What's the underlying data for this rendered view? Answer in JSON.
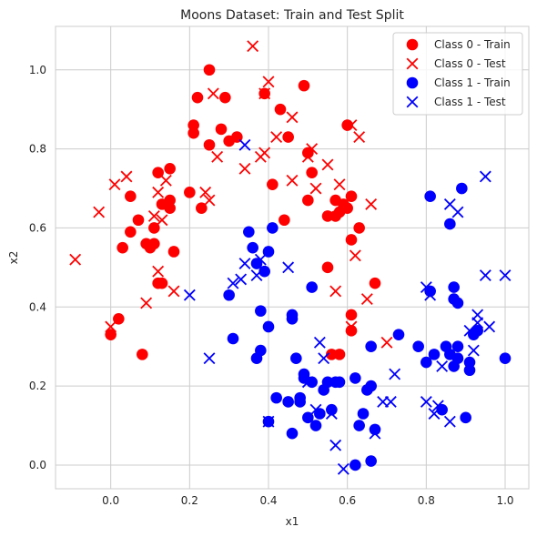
{
  "chart_data": {
    "type": "scatter",
    "title": "Moons Dataset: Train and Test Split",
    "xlabel": "x1",
    "ylabel": "x2",
    "xlim": [
      -0.14,
      1.06
    ],
    "ylim": [
      -0.06,
      1.11
    ],
    "xticks": [
      "0.0",
      "0.2",
      "0.4",
      "0.6",
      "0.8",
      "1.0"
    ],
    "yticks": [
      "0.0",
      "0.2",
      "0.4",
      "0.6",
      "0.8",
      "1.0"
    ],
    "grid": true,
    "legend_position": "top-right",
    "series": [
      {
        "name": "Class 0 - Train",
        "color": "#ff0000",
        "marker": "circle",
        "points": [
          [
            0.0,
            0.33
          ],
          [
            0.02,
            0.37
          ],
          [
            0.03,
            0.55
          ],
          [
            0.05,
            0.68
          ],
          [
            0.05,
            0.59
          ],
          [
            0.07,
            0.62
          ],
          [
            0.08,
            0.28
          ],
          [
            0.09,
            0.56
          ],
          [
            0.1,
            0.55
          ],
          [
            0.11,
            0.56
          ],
          [
            0.11,
            0.6
          ],
          [
            0.12,
            0.74
          ],
          [
            0.12,
            0.46
          ],
          [
            0.13,
            0.46
          ],
          [
            0.13,
            0.66
          ],
          [
            0.15,
            0.75
          ],
          [
            0.15,
            0.67
          ],
          [
            0.15,
            0.65
          ],
          [
            0.16,
            0.54
          ],
          [
            0.2,
            0.69
          ],
          [
            0.21,
            0.86
          ],
          [
            0.21,
            0.84
          ],
          [
            0.22,
            0.93
          ],
          [
            0.23,
            0.65
          ],
          [
            0.25,
            1.0
          ],
          [
            0.25,
            0.81
          ],
          [
            0.28,
            0.85
          ],
          [
            0.29,
            0.93
          ],
          [
            0.3,
            0.82
          ],
          [
            0.32,
            0.83
          ],
          [
            0.39,
            0.94
          ],
          [
            0.41,
            0.71
          ],
          [
            0.43,
            0.9
          ],
          [
            0.44,
            0.62
          ],
          [
            0.45,
            0.83
          ],
          [
            0.49,
            0.96
          ],
          [
            0.5,
            0.67
          ],
          [
            0.5,
            0.79
          ],
          [
            0.51,
            0.74
          ],
          [
            0.55,
            0.63
          ],
          [
            0.55,
            0.5
          ],
          [
            0.56,
            0.28
          ],
          [
            0.57,
            0.67
          ],
          [
            0.57,
            0.63
          ],
          [
            0.58,
            0.28
          ],
          [
            0.58,
            0.64
          ],
          [
            0.59,
            0.66
          ],
          [
            0.6,
            0.65
          ],
          [
            0.6,
            0.86
          ],
          [
            0.61,
            0.68
          ],
          [
            0.61,
            0.57
          ],
          [
            0.61,
            0.38
          ],
          [
            0.61,
            0.34
          ],
          [
            0.63,
            0.6
          ],
          [
            0.67,
            0.46
          ]
        ]
      },
      {
        "name": "Class 0 - Test",
        "color": "#ff0000",
        "marker": "x",
        "points": [
          [
            -0.09,
            0.52
          ],
          [
            -0.03,
            0.64
          ],
          [
            0.0,
            0.35
          ],
          [
            0.01,
            0.71
          ],
          [
            0.04,
            0.73
          ],
          [
            0.09,
            0.41
          ],
          [
            0.11,
            0.63
          ],
          [
            0.12,
            0.49
          ],
          [
            0.12,
            0.69
          ],
          [
            0.13,
            0.62
          ],
          [
            0.14,
            0.72
          ],
          [
            0.16,
            0.44
          ],
          [
            0.24,
            0.69
          ],
          [
            0.25,
            0.67
          ],
          [
            0.26,
            0.94
          ],
          [
            0.27,
            0.78
          ],
          [
            0.36,
            1.06
          ],
          [
            0.34,
            0.75
          ],
          [
            0.38,
            0.78
          ],
          [
            0.39,
            0.79
          ],
          [
            0.39,
            0.94
          ],
          [
            0.4,
            0.97
          ],
          [
            0.42,
            0.83
          ],
          [
            0.46,
            0.88
          ],
          [
            0.46,
            0.72
          ],
          [
            0.5,
            0.78
          ],
          [
            0.51,
            0.8
          ],
          [
            0.52,
            0.7
          ],
          [
            0.55,
            0.76
          ],
          [
            0.57,
            0.44
          ],
          [
            0.58,
            0.71
          ],
          [
            0.61,
            0.86
          ],
          [
            0.61,
            0.35
          ],
          [
            0.62,
            0.53
          ],
          [
            0.63,
            0.83
          ],
          [
            0.65,
            0.42
          ],
          [
            0.66,
            0.66
          ],
          [
            0.7,
            0.31
          ]
        ]
      },
      {
        "name": "Class 1 - Train",
        "color": "#0000ff",
        "marker": "circle",
        "points": [
          [
            0.3,
            0.43
          ],
          [
            0.31,
            0.32
          ],
          [
            0.35,
            0.59
          ],
          [
            0.36,
            0.55
          ],
          [
            0.37,
            0.27
          ],
          [
            0.37,
            0.51
          ],
          [
            0.38,
            0.29
          ],
          [
            0.38,
            0.39
          ],
          [
            0.39,
            0.49
          ],
          [
            0.4,
            0.54
          ],
          [
            0.4,
            0.35
          ],
          [
            0.4,
            0.11
          ],
          [
            0.41,
            0.6
          ],
          [
            0.42,
            0.17
          ],
          [
            0.45,
            0.16
          ],
          [
            0.46,
            0.38
          ],
          [
            0.46,
            0.37
          ],
          [
            0.46,
            0.08
          ],
          [
            0.47,
            0.27
          ],
          [
            0.48,
            0.17
          ],
          [
            0.48,
            0.16
          ],
          [
            0.49,
            0.23
          ],
          [
            0.49,
            0.22
          ],
          [
            0.5,
            0.12
          ],
          [
            0.51,
            0.45
          ],
          [
            0.51,
            0.21
          ],
          [
            0.52,
            0.1
          ],
          [
            0.53,
            0.13
          ],
          [
            0.54,
            0.19
          ],
          [
            0.55,
            0.21
          ],
          [
            0.56,
            0.14
          ],
          [
            0.57,
            0.21
          ],
          [
            0.58,
            0.21
          ],
          [
            0.62,
            0.0
          ],
          [
            0.62,
            0.22
          ],
          [
            0.63,
            0.1
          ],
          [
            0.64,
            0.13
          ],
          [
            0.65,
            0.19
          ],
          [
            0.66,
            0.3
          ],
          [
            0.66,
            0.2
          ],
          [
            0.66,
            0.01
          ],
          [
            0.67,
            0.09
          ],
          [
            0.73,
            0.33
          ],
          [
            0.78,
            0.3
          ],
          [
            0.8,
            0.26
          ],
          [
            0.81,
            0.68
          ],
          [
            0.81,
            0.44
          ],
          [
            0.82,
            0.28
          ],
          [
            0.84,
            0.14
          ],
          [
            0.85,
            0.3
          ],
          [
            0.86,
            0.61
          ],
          [
            0.86,
            0.28
          ],
          [
            0.87,
            0.25
          ],
          [
            0.87,
            0.42
          ],
          [
            0.87,
            0.45
          ],
          [
            0.88,
            0.27
          ],
          [
            0.88,
            0.41
          ],
          [
            0.88,
            0.3
          ],
          [
            0.89,
            0.7
          ],
          [
            0.9,
            0.12
          ],
          [
            0.91,
            0.26
          ],
          [
            0.91,
            0.24
          ],
          [
            0.92,
            0.33
          ],
          [
            0.93,
            0.34
          ],
          [
            1.0,
            0.27
          ]
        ]
      },
      {
        "name": "Class 1 - Test",
        "color": "#0000ff",
        "marker": "x",
        "points": [
          [
            0.2,
            0.43
          ],
          [
            0.25,
            0.27
          ],
          [
            0.31,
            0.46
          ],
          [
            0.33,
            0.47
          ],
          [
            0.34,
            0.51
          ],
          [
            0.34,
            0.81
          ],
          [
            0.37,
            0.48
          ],
          [
            0.38,
            0.52
          ],
          [
            0.4,
            0.11
          ],
          [
            0.45,
            0.5
          ],
          [
            0.5,
            0.21
          ],
          [
            0.52,
            0.14
          ],
          [
            0.53,
            0.31
          ],
          [
            0.54,
            0.27
          ],
          [
            0.56,
            0.13
          ],
          [
            0.57,
            0.05
          ],
          [
            0.59,
            -0.01
          ],
          [
            0.67,
            0.08
          ],
          [
            0.69,
            0.16
          ],
          [
            0.71,
            0.16
          ],
          [
            0.72,
            0.23
          ],
          [
            0.8,
            0.16
          ],
          [
            0.8,
            0.45
          ],
          [
            0.81,
            0.43
          ],
          [
            0.82,
            0.13
          ],
          [
            0.83,
            0.15
          ],
          [
            0.84,
            0.25
          ],
          [
            0.86,
            0.11
          ],
          [
            0.86,
            0.66
          ],
          [
            0.88,
            0.64
          ],
          [
            0.91,
            0.34
          ],
          [
            0.92,
            0.29
          ],
          [
            0.93,
            0.38
          ],
          [
            0.93,
            0.36
          ],
          [
            0.95,
            0.48
          ],
          [
            0.95,
            0.73
          ],
          [
            0.96,
            0.35
          ],
          [
            1.0,
            0.48
          ]
        ]
      }
    ]
  }
}
